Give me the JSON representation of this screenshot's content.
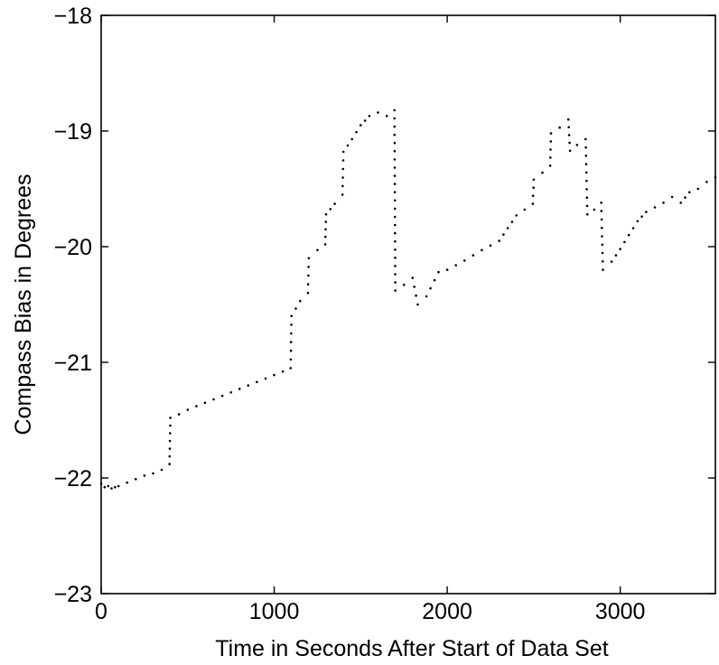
{
  "chart_data": {
    "type": "scatter",
    "title": "",
    "xlabel": "Time in Seconds After Start of Data Set",
    "ylabel": "Compass Bias in Degrees",
    "xlim": [
      0,
      3550
    ],
    "ylim": [
      -23,
      -18
    ],
    "xticks": [
      0,
      1000,
      2000,
      3000
    ],
    "xtick_labels": [
      "0",
      "1000",
      "2000",
      "3000"
    ],
    "yticks": [
      -23,
      -22,
      -21,
      -20,
      -19,
      -18
    ],
    "ytick_labels": [
      "−23",
      "−22",
      "−21",
      "−20",
      "−19",
      "−18"
    ],
    "grid": false,
    "marker": "dot",
    "color": "#000000",
    "series": [
      {
        "points": [
          [
            0,
            -22.05
          ],
          [
            20,
            -22.08
          ],
          [
            40,
            -22.07
          ],
          [
            60,
            -22.09
          ],
          [
            80,
            -22.08
          ],
          [
            100,
            -22.07
          ],
          [
            150,
            -22.04
          ],
          [
            200,
            -22.01
          ],
          [
            250,
            -21.98
          ],
          [
            300,
            -21.96
          ],
          [
            350,
            -21.93
          ],
          [
            395,
            -21.88
          ],
          [
            400,
            -21.48
          ],
          [
            450,
            -21.45
          ],
          [
            500,
            -21.41
          ],
          [
            550,
            -21.38
          ],
          [
            600,
            -21.35
          ],
          [
            650,
            -21.32
          ],
          [
            700,
            -21.29
          ],
          [
            750,
            -21.26
          ],
          [
            800,
            -21.23
          ],
          [
            850,
            -21.2
          ],
          [
            900,
            -21.17
          ],
          [
            950,
            -21.14
          ],
          [
            1000,
            -21.11
          ],
          [
            1050,
            -21.08
          ],
          [
            1095,
            -21.05
          ],
          [
            1100,
            -20.6
          ],
          [
            1150,
            -20.47
          ],
          [
            1195,
            -20.4
          ],
          [
            1200,
            -20.1
          ],
          [
            1250,
            -20.03
          ],
          [
            1295,
            -19.98
          ],
          [
            1300,
            -19.72
          ],
          [
            1350,
            -19.63
          ],
          [
            1395,
            -19.55
          ],
          [
            1400,
            -19.18
          ],
          [
            1450,
            -19.07
          ],
          [
            1500,
            -18.95
          ],
          [
            1550,
            -18.87
          ],
          [
            1600,
            -18.84
          ],
          [
            1650,
            -18.87
          ],
          [
            1695,
            -18.82
          ],
          [
            1700,
            -20.38
          ],
          [
            1750,
            -20.33
          ],
          [
            1800,
            -20.27
          ],
          [
            1830,
            -20.5
          ],
          [
            1880,
            -20.43
          ],
          [
            1950,
            -20.22
          ],
          [
            2000,
            -20.2
          ],
          [
            2100,
            -20.12
          ],
          [
            2200,
            -20.03
          ],
          [
            2300,
            -19.95
          ],
          [
            2400,
            -19.73
          ],
          [
            2495,
            -19.63
          ],
          [
            2500,
            -19.42
          ],
          [
            2550,
            -19.36
          ],
          [
            2595,
            -19.3
          ],
          [
            2600,
            -19.02
          ],
          [
            2650,
            -18.97
          ],
          [
            2700,
            -18.9
          ],
          [
            2710,
            -19.17
          ],
          [
            2750,
            -19.12
          ],
          [
            2800,
            -19.07
          ],
          [
            2810,
            -19.72
          ],
          [
            2850,
            -19.68
          ],
          [
            2890,
            -19.62
          ],
          [
            2900,
            -20.2
          ],
          [
            2950,
            -20.13
          ],
          [
            3000,
            -20.02
          ],
          [
            3050,
            -19.9
          ],
          [
            3100,
            -19.78
          ],
          [
            3150,
            -19.7
          ],
          [
            3200,
            -19.66
          ],
          [
            3250,
            -19.62
          ],
          [
            3300,
            -19.57
          ],
          [
            3350,
            -19.62
          ],
          [
            3400,
            -19.53
          ],
          [
            3450,
            -19.5
          ],
          [
            3500,
            -19.44
          ],
          [
            3550,
            -19.4
          ]
        ]
      }
    ]
  }
}
